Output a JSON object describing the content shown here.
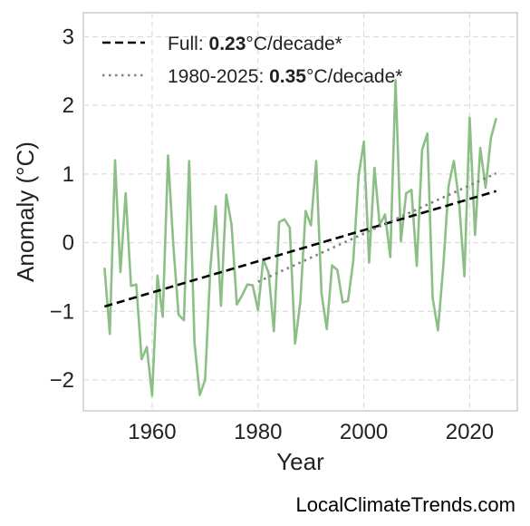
{
  "watermark": "LocalClimateTrends.com",
  "chart_data": {
    "type": "line",
    "title": "",
    "xlabel": "Year",
    "ylabel": "Anomaly (°C)",
    "xlim": [
      1947,
      2029
    ],
    "ylim": [
      -2.45,
      3.35
    ],
    "xticks": [
      1960,
      1980,
      2000,
      2020
    ],
    "yticks": [
      -2,
      -1,
      0,
      1,
      2,
      3
    ],
    "ytick_labels": [
      "−2",
      "−1",
      "0",
      "1",
      "2",
      "3"
    ],
    "grid": true,
    "legend_placement": "top-left",
    "colors": {
      "series": "#8bbf86",
      "full_trend": "#000000",
      "recent_trend": "#808080"
    },
    "series": [
      {
        "x": [
          1951,
          1952,
          1953,
          1954,
          1955,
          1956,
          1957,
          1958,
          1959,
          1960,
          1961,
          1962,
          1963,
          1964,
          1965,
          1966,
          1967,
          1968,
          1969,
          1970,
          1971,
          1972,
          1973,
          1974,
          1975,
          1976,
          1977,
          1978,
          1979,
          1980,
          1981,
          1982,
          1983,
          1984,
          1985,
          1986,
          1987,
          1988,
          1989,
          1990,
          1991,
          1992,
          1993,
          1994,
          1995,
          1996,
          1997,
          1998,
          1999,
          2000,
          2001,
          2002,
          2003,
          2004,
          2005,
          2006,
          2007,
          2008,
          2009,
          2010,
          2011,
          2012,
          2013,
          2014,
          2015,
          2016,
          2017,
          2018,
          2019,
          2020,
          2021,
          2022,
          2023,
          2024,
          2025
        ],
        "y": [
          -0.37,
          -1.33,
          1.2,
          -0.43,
          0.72,
          -0.63,
          -0.61,
          -1.7,
          -1.52,
          -2.23,
          -0.48,
          -1.08,
          1.27,
          -0.04,
          -1.05,
          -1.13,
          1.19,
          -1.46,
          -2.22,
          -2.0,
          -0.37,
          0.53,
          -0.92,
          0.7,
          0.26,
          -0.9,
          -0.77,
          -0.61,
          -0.62,
          -0.98,
          -0.24,
          -0.44,
          -1.29,
          0.3,
          0.34,
          0.22,
          -1.47,
          -0.86,
          0.46,
          0.25,
          1.19,
          -0.74,
          -1.26,
          -0.33,
          -0.4,
          -0.87,
          -0.85,
          -0.27,
          0.97,
          1.47,
          -0.29,
          1.09,
          0.26,
          0.41,
          -0.21,
          2.37,
          0.02,
          0.72,
          0.77,
          -0.34,
          1.35,
          1.59,
          -0.8,
          -1.28,
          -0.36,
          0.82,
          1.19,
          0.6,
          -0.49,
          1.82,
          0.11,
          1.38,
          0.8,
          1.52,
          1.81
        ]
      }
    ],
    "trends": [
      {
        "name": "Full",
        "rate": "0.23",
        "unit": "°C/decade*",
        "x": [
          1951,
          2025
        ],
        "y": [
          -0.93,
          0.75
        ],
        "style": "dashed"
      },
      {
        "name": "1980-2025",
        "rate": "0.35",
        "unit": "°C/decade*",
        "x": [
          1980,
          2025
        ],
        "y": [
          -0.57,
          1.01
        ],
        "style": "dotted"
      }
    ]
  }
}
